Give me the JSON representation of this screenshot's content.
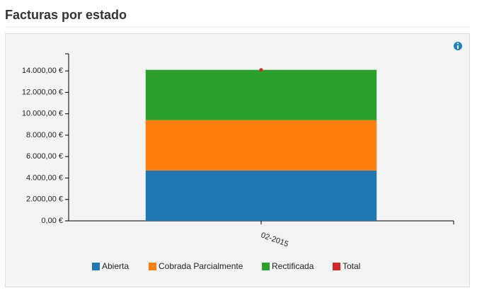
{
  "chart_data": {
    "type": "bar",
    "stacked": true,
    "title": "Facturas por estado",
    "categories": [
      "02-2015"
    ],
    "series": [
      {
        "name": "Abierta",
        "color": "#1f77b4",
        "values": [
          4700
        ]
      },
      {
        "name": "Cobrada Parcialmente",
        "color": "#ff7f0e",
        "values": [
          4700
        ]
      },
      {
        "name": "Rectificada",
        "color": "#2ca02c",
        "values": [
          4700
        ]
      },
      {
        "name": "Total",
        "color": "#d62728",
        "type": "point",
        "values": [
          14100
        ]
      }
    ],
    "ylim": [
      0,
      15600
    ],
    "yticks": [
      {
        "value": 0,
        "label": "0,00 €"
      },
      {
        "value": 2000,
        "label": "2.000,00 €"
      },
      {
        "value": 4000,
        "label": "4.000,00 €"
      },
      {
        "value": 6000,
        "label": "6.000,00 €"
      },
      {
        "value": 8000,
        "label": "8.000,00 €"
      },
      {
        "value": 10000,
        "label": "10.000,00 €"
      },
      {
        "value": 12000,
        "label": "12.000,00 €"
      },
      {
        "value": 14000,
        "label": "14.000,00 €"
      }
    ],
    "legend": "bottom"
  }
}
